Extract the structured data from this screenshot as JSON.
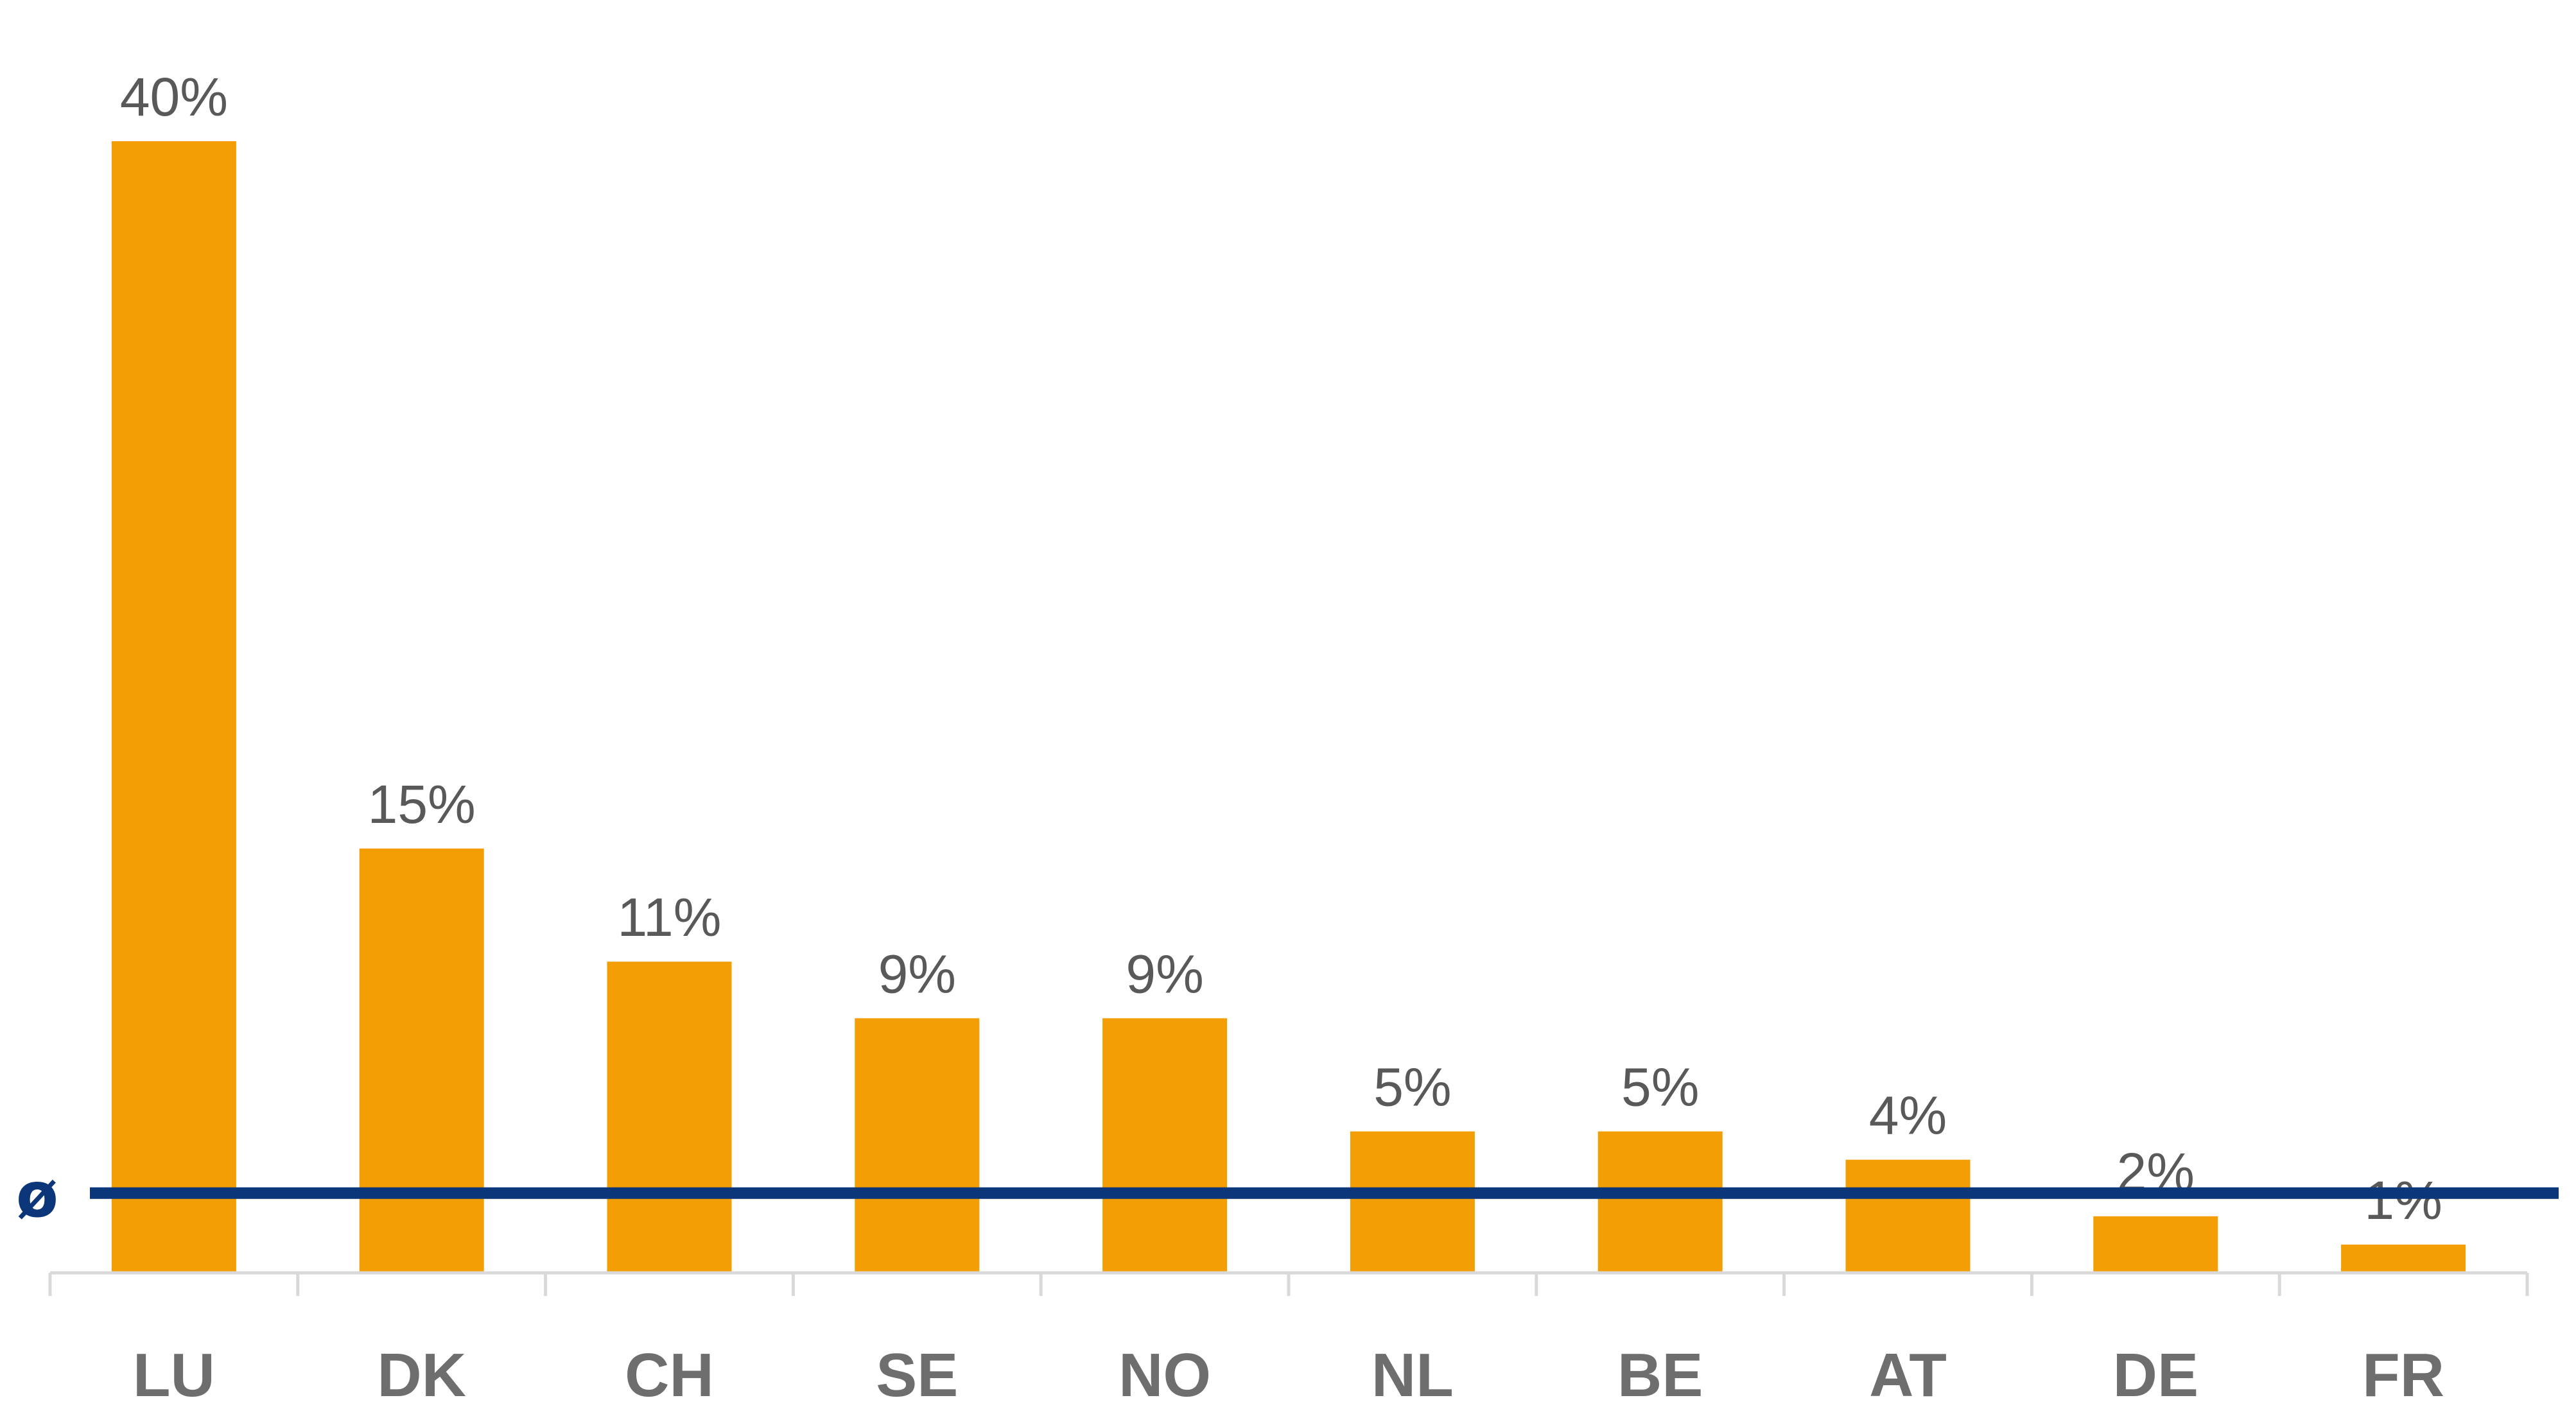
{
  "chart_data": {
    "type": "bar",
    "categories": [
      "LU",
      "DK",
      "CH",
      "SE",
      "NO",
      "NL",
      "BE",
      "AT",
      "DE",
      "FR"
    ],
    "values": [
      40,
      15,
      11,
      9,
      9,
      5,
      5,
      4,
      2,
      1
    ],
    "data_labels": [
      "40%",
      "15%",
      "11%",
      "9%",
      "9%",
      "5%",
      "5%",
      "4%",
      "2%",
      "1%"
    ],
    "average_line": {
      "symbol": "ø",
      "value": 3
    },
    "title": "",
    "xlabel": "",
    "ylabel": "",
    "ylim": [
      0,
      40
    ],
    "grid": false,
    "legend": "none"
  },
  "colors": {
    "bar": "#f29e04",
    "average_line": "#0b3679",
    "axis": "#d9d9d9",
    "data_label": "#595959",
    "category_label": "#6e6e6e"
  }
}
